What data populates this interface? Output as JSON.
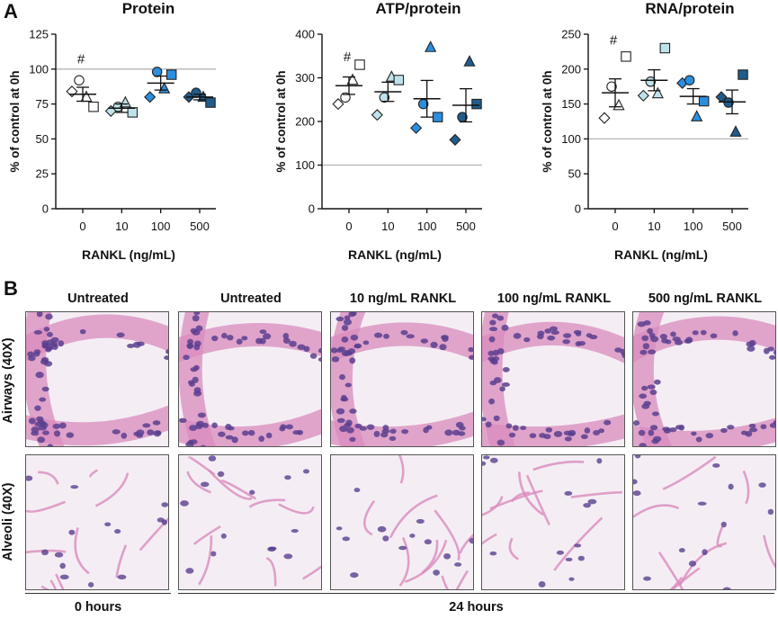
{
  "panel_a_label": "A",
  "panel_b_label": "B",
  "colors": {
    "c0": "#ffffff",
    "c10": "#bfe3ec",
    "c100": "#2b8fe0",
    "c500": "#1f5c8c",
    "marker_edge": "#222222",
    "ref_line": "#b5b5b5",
    "tissue_bg": "#f4eef4",
    "nuclei": "#5a3f8f",
    "cytoplasm": "#d98bbd"
  },
  "chart_data": [
    {
      "type": "scatter",
      "title": "Protein",
      "xlabel": "RANKL (ng/mL)",
      "ylabel": "% of control at 0h",
      "categories": [
        "0",
        "10",
        "100",
        "500"
      ],
      "ylim": [
        0,
        125
      ],
      "yticks": [
        "0",
        "25",
        "50",
        "75",
        "100",
        "125"
      ],
      "reference_line": 100,
      "annotation": {
        "category": "0",
        "y": 104,
        "text": "#"
      },
      "series": [
        {
          "category": "0",
          "mean": 82,
          "sem": 5,
          "points": [
            {
              "shape": "diamond",
              "y": 84
            },
            {
              "shape": "circle",
              "y": 92
            },
            {
              "shape": "triangle",
              "y": 80
            },
            {
              "shape": "square",
              "y": 73
            }
          ]
        },
        {
          "category": "10",
          "mean": 72,
          "sem": 3,
          "points": [
            {
              "shape": "diamond",
              "y": 70
            },
            {
              "shape": "circle",
              "y": 73
            },
            {
              "shape": "triangle",
              "y": 76
            },
            {
              "shape": "square",
              "y": 69
            }
          ]
        },
        {
          "category": "100",
          "mean": 90,
          "sem": 5,
          "points": [
            {
              "shape": "diamond",
              "y": 80
            },
            {
              "shape": "circle",
              "y": 98
            },
            {
              "shape": "triangle",
              "y": 86
            },
            {
              "shape": "square",
              "y": 96
            }
          ]
        },
        {
          "category": "500",
          "mean": 80,
          "sem": 2,
          "points": [
            {
              "shape": "diamond",
              "y": 80
            },
            {
              "shape": "circle",
              "y": 83
            },
            {
              "shape": "triangle",
              "y": 80
            },
            {
              "shape": "square",
              "y": 76
            }
          ]
        }
      ]
    },
    {
      "type": "scatter",
      "title": "ATP/protein",
      "xlabel": "RANKL (ng/mL)",
      "ylabel": "% of control at 0h",
      "categories": [
        "0",
        "10",
        "100",
        "500"
      ],
      "ylim": [
        0,
        400
      ],
      "yticks": [
        "0",
        "100",
        "200",
        "300",
        "400"
      ],
      "reference_line": 100,
      "annotation": {
        "category": "0",
        "y": 338,
        "text": "#"
      },
      "series": [
        {
          "category": "0",
          "mean": 282,
          "sem": 20,
          "points": [
            {
              "shape": "diamond",
              "y": 240
            },
            {
              "shape": "circle",
              "y": 255
            },
            {
              "shape": "triangle",
              "y": 295
            },
            {
              "shape": "square",
              "y": 330
            }
          ]
        },
        {
          "category": "10",
          "mean": 268,
          "sem": 22,
          "points": [
            {
              "shape": "diamond",
              "y": 215
            },
            {
              "shape": "circle",
              "y": 255
            },
            {
              "shape": "triangle",
              "y": 302
            },
            {
              "shape": "square",
              "y": 295
            }
          ]
        },
        {
          "category": "100",
          "mean": 252,
          "sem": 42,
          "points": [
            {
              "shape": "diamond",
              "y": 185
            },
            {
              "shape": "circle",
              "y": 240
            },
            {
              "shape": "triangle",
              "y": 370
            },
            {
              "shape": "square",
              "y": 210
            }
          ]
        },
        {
          "category": "500",
          "mean": 237,
          "sem": 38,
          "points": [
            {
              "shape": "diamond",
              "y": 158
            },
            {
              "shape": "circle",
              "y": 210
            },
            {
              "shape": "triangle",
              "y": 337
            },
            {
              "shape": "square",
              "y": 240
            }
          ]
        }
      ]
    },
    {
      "type": "scatter",
      "title": "RNA/protein",
      "xlabel": "RANKL (ng/mL)",
      "ylabel": "% of control at 0h",
      "categories": [
        "0",
        "10",
        "100",
        "500"
      ],
      "ylim": [
        0,
        250
      ],
      "yticks": [
        "0",
        "50",
        "100",
        "150",
        "200",
        "250"
      ],
      "reference_line": 100,
      "annotation": {
        "category": "0",
        "y": 235,
        "text": "#"
      },
      "series": [
        {
          "category": "0",
          "mean": 166,
          "sem": 20,
          "points": [
            {
              "shape": "diamond",
              "y": 130
            },
            {
              "shape": "circle",
              "y": 175
            },
            {
              "shape": "triangle",
              "y": 148
            },
            {
              "shape": "square",
              "y": 218
            }
          ]
        },
        {
          "category": "10",
          "mean": 184,
          "sem": 15,
          "points": [
            {
              "shape": "diamond",
              "y": 162
            },
            {
              "shape": "circle",
              "y": 182
            },
            {
              "shape": "triangle",
              "y": 165
            },
            {
              "shape": "square",
              "y": 230
            }
          ]
        },
        {
          "category": "100",
          "mean": 161,
          "sem": 11,
          "points": [
            {
              "shape": "diamond",
              "y": 180
            },
            {
              "shape": "circle",
              "y": 184
            },
            {
              "shape": "triangle",
              "y": 132
            },
            {
              "shape": "square",
              "y": 154
            }
          ]
        },
        {
          "category": "500",
          "mean": 153,
          "sem": 17,
          "points": [
            {
              "shape": "diamond",
              "y": 160
            },
            {
              "shape": "circle",
              "y": 152
            },
            {
              "shape": "triangle",
              "y": 110
            },
            {
              "shape": "square",
              "y": 192
            }
          ]
        }
      ]
    }
  ],
  "micrographs": {
    "columns": [
      "Untreated",
      "Untreated",
      "10 ng/mL RANKL",
      "100 ng/mL RANKL",
      "500 ng/mL RANKL"
    ],
    "rows": [
      "Airways (40X)",
      "Alveoli (40X)"
    ],
    "time_labels": [
      "0 hours",
      "24 hours"
    ]
  }
}
